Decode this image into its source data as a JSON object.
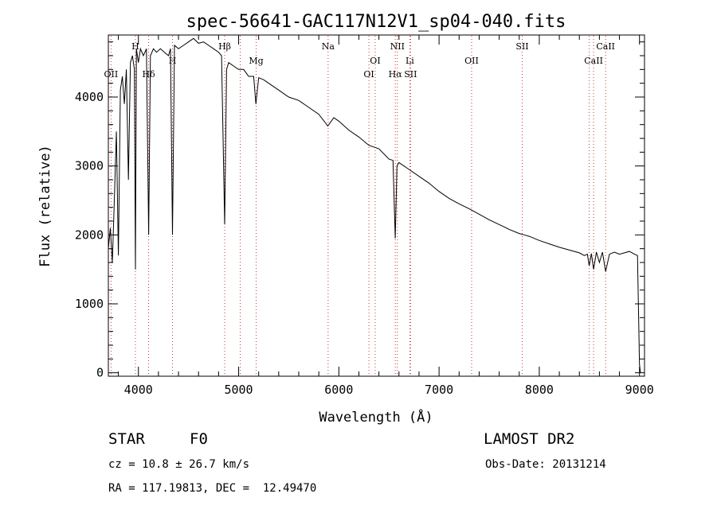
{
  "chart_data": {
    "type": "line",
    "title": "spec-56641-GAC117N12V1_sp04-040.fits",
    "xlabel": "Wavelength (Å)",
    "ylabel": "Flux (relative)",
    "xlim": [
      3700,
      9050
    ],
    "ylim": [
      -50,
      4900
    ],
    "x_ticks": [
      4000,
      5000,
      6000,
      7000,
      8000,
      9000
    ],
    "y_ticks": [
      0,
      1000,
      2000,
      3000,
      4000
    ],
    "grid": false,
    "series": [
      {
        "x": [
          3700,
          3720,
          3740,
          3760,
          3780,
          3800,
          3820,
          3840,
          3860,
          3880,
          3900,
          3920,
          3940,
          3960,
          3970,
          3980,
          4000,
          4020,
          4050,
          4080,
          4102,
          4120,
          4150,
          4180,
          4220,
          4260,
          4300,
          4320,
          4340,
          4360,
          4400,
          4450,
          4500,
          4550,
          4600,
          4650,
          4700,
          4750,
          4800,
          4830,
          4861,
          4880,
          4900,
          4950,
          5000,
          5050,
          5100,
          5150,
          5172,
          5200,
          5250,
          5300,
          5400,
          5500,
          5600,
          5700,
          5800,
          5890,
          5950,
          6000,
          6100,
          6200,
          6300,
          6400,
          6500,
          6540,
          6563,
          6580,
          6600,
          6650,
          6700,
          6800,
          6900,
          7000,
          7100,
          7200,
          7300,
          7400,
          7500,
          7600,
          7700,
          7800,
          7850,
          7900,
          8000,
          8100,
          8200,
          8300,
          8400,
          8450,
          8480,
          8498,
          8520,
          8542,
          8570,
          8600,
          8630,
          8662,
          8700,
          8750,
          8800,
          8850,
          8900,
          8950,
          8980,
          9000,
          9010
        ],
        "y": [
          1800,
          2100,
          1600,
          2500,
          3500,
          1700,
          4100,
          4300,
          3900,
          4400,
          2800,
          4500,
          4600,
          4400,
          1500,
          4700,
          4500,
          4700,
          4600,
          4700,
          2000,
          4600,
          4700,
          4650,
          4700,
          4650,
          4600,
          4700,
          2000,
          4750,
          4700,
          4750,
          4800,
          4850,
          4780,
          4800,
          4750,
          4700,
          4650,
          4600,
          2150,
          4400,
          4500,
          4450,
          4400,
          4400,
          4300,
          4300,
          3900,
          4280,
          4250,
          4200,
          4100,
          4000,
          3950,
          3850,
          3750,
          3580,
          3700,
          3650,
          3520,
          3420,
          3300,
          3250,
          3100,
          3080,
          1950,
          3000,
          3050,
          3000,
          2950,
          2850,
          2750,
          2630,
          2530,
          2450,
          2380,
          2300,
          2220,
          2150,
          2080,
          2020,
          2000,
          1980,
          1920,
          1870,
          1820,
          1780,
          1740,
          1700,
          1720,
          1550,
          1730,
          1500,
          1750,
          1600,
          1750,
          1470,
          1720,
          1750,
          1720,
          1740,
          1760,
          1720,
          1700,
          120,
          0
        ]
      }
    ],
    "lines": [
      {
        "label": "OII",
        "x": 3727,
        "row": 2
      },
      {
        "label": "H",
        "x": 3970,
        "row": 0
      },
      {
        "label": "Hδ",
        "x": 4102,
        "row": 2
      },
      {
        "label": "H",
        "x": 4340,
        "row": 1
      },
      {
        "label": "Hβ",
        "x": 4861,
        "row": 0
      },
      {
        "label": "Mg",
        "x": 5175,
        "row": 1
      },
      {
        "label": "Na",
        "x": 5893,
        "row": 0
      },
      {
        "label": "OI",
        "x": 6300,
        "row": 2
      },
      {
        "label": "OI",
        "x": 6363,
        "row": 1
      },
      {
        "label": "NII",
        "x": 6584,
        "row": 0
      },
      {
        "label": "Hα",
        "x": 6563,
        "row": 2
      },
      {
        "label": "Li",
        "x": 6708,
        "row": 1
      },
      {
        "label": "SII",
        "x": 6716,
        "row": 2
      },
      {
        "label": "OII",
        "x": 7325,
        "row": 1
      },
      {
        "label": "SII",
        "x": 7830,
        "row": 0
      },
      {
        "label": "CaII",
        "x": 8542,
        "row": 1
      },
      {
        "label": "CaII",
        "x": 8662,
        "row": 0
      }
    ],
    "line_positions": [
      3727,
      3970,
      4102,
      4340,
      4861,
      5016,
      5175,
      5893,
      6300,
      6363,
      6563,
      6584,
      6708,
      6716,
      7325,
      7830,
      8498,
      8542,
      8662
    ]
  },
  "info": {
    "class_label": "STAR",
    "subclass": "F0",
    "survey": "LAMOST DR2",
    "cz": "cz = 10.8 ± 26.7 km/s",
    "obs_date": "Obs-Date: 20131214",
    "radec": "RA = 117.19813, DEC =  12.49470"
  }
}
